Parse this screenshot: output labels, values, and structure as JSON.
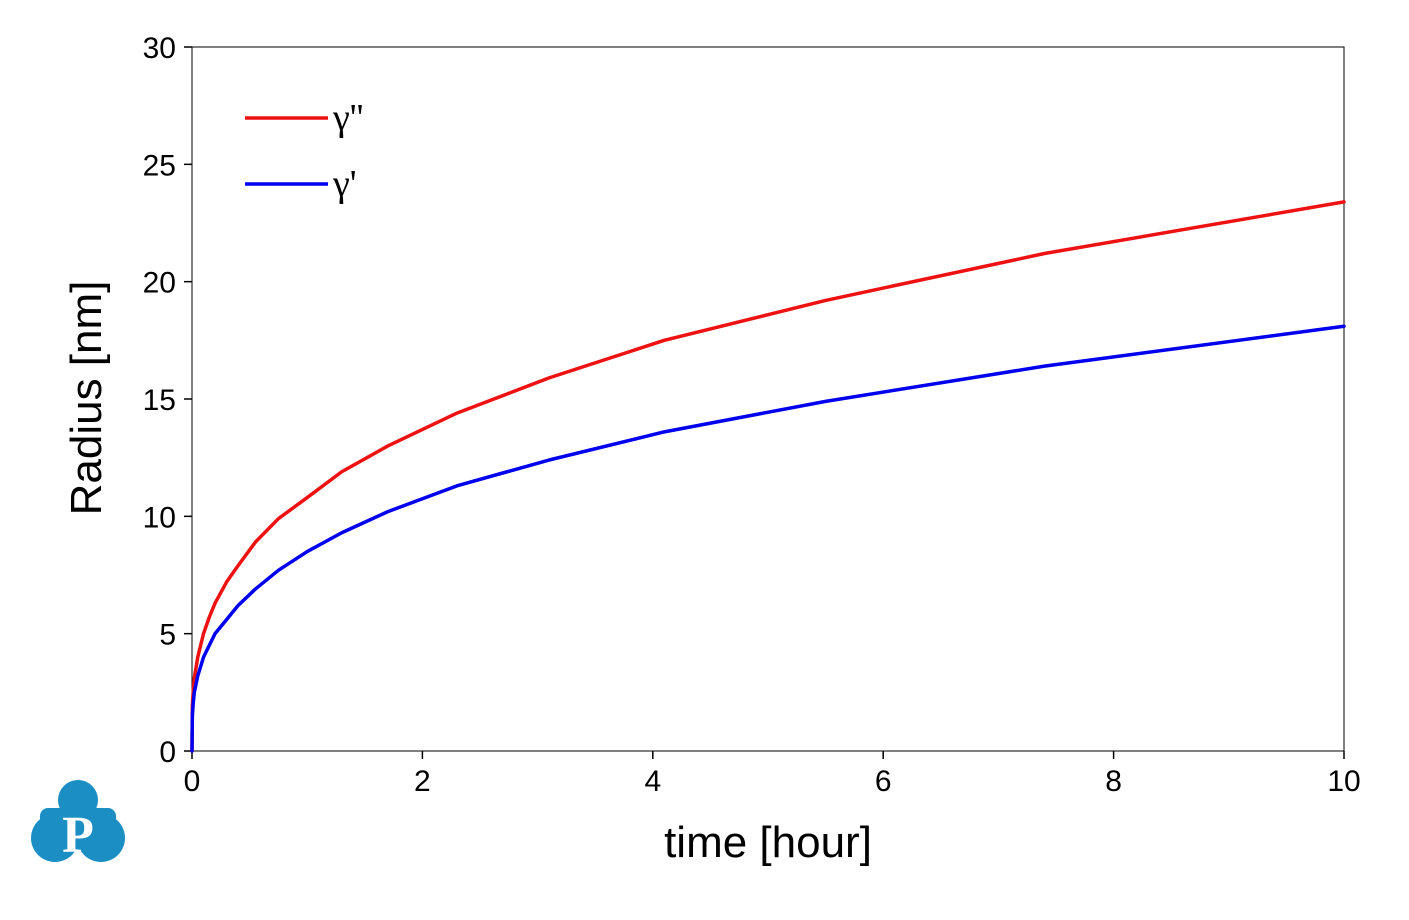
{
  "chart_data": {
    "type": "line",
    "xlabel": "time [hour]",
    "ylabel": "Radius [nm]",
    "xlim": [
      0,
      10
    ],
    "ylim": [
      0,
      30
    ],
    "xticks": [
      0,
      2,
      4,
      6,
      8,
      10
    ],
    "yticks": [
      0,
      5,
      10,
      15,
      20,
      25,
      30
    ],
    "grid": false,
    "legend_position": "top-left",
    "series": [
      {
        "name": "γ''",
        "color": "#ee1111",
        "x": [
          0,
          0.003,
          0.01,
          0.02,
          0.05,
          0.1,
          0.15,
          0.2,
          0.3,
          0.4,
          0.55,
          0.75,
          1.0,
          1.3,
          1.7,
          2.3,
          3.1,
          4.1,
          5.5,
          7.4,
          10.0
        ],
        "y": [
          0,
          1.9,
          2.5,
          3.1,
          4.0,
          5.0,
          5.7,
          6.3,
          7.2,
          7.9,
          8.9,
          9.9,
          10.8,
          11.9,
          13.0,
          14.4,
          15.9,
          17.5,
          19.2,
          21.2,
          23.4
        ]
      },
      {
        "name": "γ'",
        "color": "#0000ee",
        "x": [
          0,
          0.003,
          0.01,
          0.02,
          0.05,
          0.1,
          0.15,
          0.2,
          0.3,
          0.4,
          0.55,
          0.75,
          1.0,
          1.3,
          1.7,
          2.3,
          3.1,
          4.1,
          5.5,
          7.4,
          10.0
        ],
        "y": [
          0,
          1.5,
          2.0,
          2.5,
          3.2,
          4.0,
          4.5,
          5.0,
          5.6,
          6.2,
          6.9,
          7.7,
          8.5,
          9.3,
          10.2,
          11.3,
          12.4,
          13.6,
          14.9,
          16.4,
          18.1
        ]
      }
    ]
  },
  "logo": {
    "letter": "P",
    "color": "#1b8fc3"
  }
}
